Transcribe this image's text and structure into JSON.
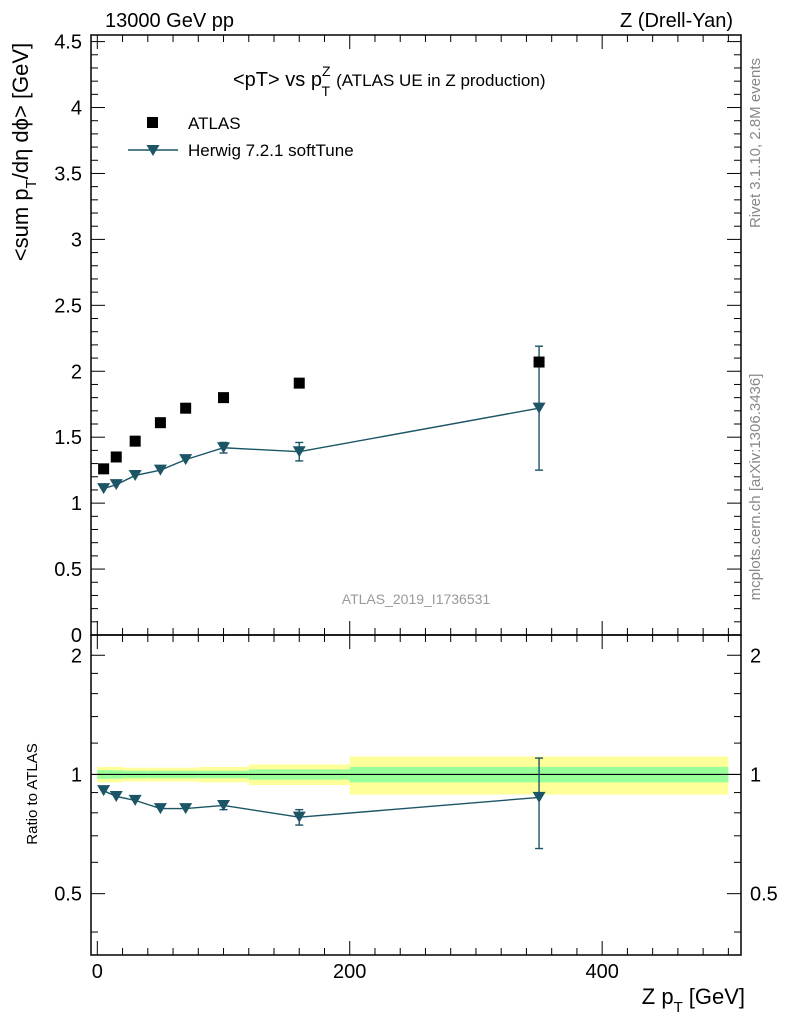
{
  "header": {
    "energy_label": "13000 GeV pp",
    "process_label": "Z (Drell-Yan)"
  },
  "side_labels": {
    "rivet": "Rivet 3.1.10,  2.8M events",
    "mcplots": "mcplots.cern.ch [arXiv:1306.3436]"
  },
  "chart_data": {
    "type": "scatter",
    "title": {
      "main": "<pT> vs p",
      "sup": "Z",
      "sub": "T",
      "suffix": "(ATLAS UE in Z production)"
    },
    "analysis_id": "ATLAS_2019_I1736531",
    "xlabel": {
      "main": "Z p",
      "sub": "T",
      "suffix": "[GeV]"
    },
    "ylabel": {
      "main": "<sum p",
      "sub": "T",
      "suffix": "/dη dϕ> [GeV]"
    },
    "ratio_ylabel": "Ratio to ATLAS",
    "xlim": [
      -5,
      510
    ],
    "ylim": [
      0,
      4.55
    ],
    "ratio_ylim": [
      0.35,
      2.25
    ],
    "x_ticks": [
      0,
      200,
      400
    ],
    "x_tick_labels": [
      "0",
      "200",
      "400"
    ],
    "y_ticks": [
      0,
      0.5,
      1,
      1.5,
      2,
      2.5,
      3,
      3.5,
      4,
      4.5
    ],
    "y_tick_labels": [
      "0",
      "0.5",
      "1",
      "1.5",
      "2",
      "2.5",
      "3",
      "3.5",
      "4",
      "4.5"
    ],
    "ratio_ticks": [
      0.5,
      1,
      2
    ],
    "ratio_tick_labels": [
      "0.5",
      "1",
      "2"
    ],
    "legend": [
      {
        "name": "ATLAS"
      },
      {
        "name": "Herwig 7.2.1 softTune"
      }
    ],
    "series": [
      {
        "name": "ATLAS",
        "color": "#000000",
        "x": [
          5,
          15,
          30,
          50,
          70,
          100,
          160,
          350
        ],
        "y": [
          1.26,
          1.35,
          1.47,
          1.61,
          1.72,
          1.8,
          1.91,
          2.07
        ],
        "band_edges": [
          0,
          10,
          20,
          40,
          60,
          80,
          120,
          200,
          500
        ],
        "band_inner": [
          0.025,
          0.025,
          0.022,
          0.022,
          0.022,
          0.022,
          0.03,
          0.045
        ],
        "band_outer": [
          0.045,
          0.045,
          0.04,
          0.04,
          0.04,
          0.045,
          0.06,
          0.11
        ]
      },
      {
        "name": "Herwig 7.2.1 softTune",
        "color": "#1b5566",
        "x": [
          5,
          15,
          30,
          50,
          70,
          100,
          160,
          350
        ],
        "y": [
          1.11,
          1.14,
          1.21,
          1.25,
          1.33,
          1.42,
          1.39,
          1.72
        ],
        "yerr": [
          0.01,
          0.01,
          0.01,
          0.01,
          0.015,
          0.04,
          0.07,
          0.47
        ],
        "ratio": [
          0.91,
          0.88,
          0.86,
          0.82,
          0.82,
          0.835,
          0.78,
          0.875
        ],
        "ratio_err": [
          0.01,
          0.01,
          0.01,
          0.01,
          0.01,
          0.02,
          0.035,
          0.225
        ]
      }
    ]
  }
}
